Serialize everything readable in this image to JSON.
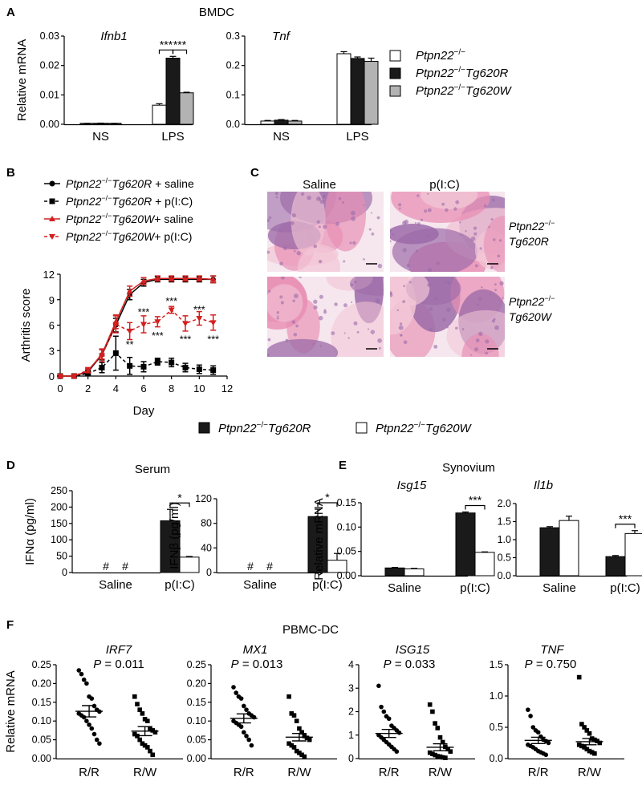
{
  "panel_A": {
    "letter": "A",
    "title": "BMDC",
    "ylabel": "Relative mRNA",
    "legend": [
      {
        "name": "Ptpn22",
        "sup": "−/−",
        "suffix": "",
        "color": "#ffffff"
      },
      {
        "name": "Ptpn22",
        "sup": "−/−",
        "suffix": "Tg620R",
        "color": "#1a1a1a"
      },
      {
        "name": "Ptpn22",
        "sup": "−/−",
        "suffix": "Tg620W",
        "color": "#b3b3b3"
      }
    ]
  },
  "panel_B": {
    "letter": "B",
    "legend": [
      {
        "prefix": "Ptpn22",
        "sup": "−/−",
        "gene": "Tg620R",
        "treat": " + saline"
      },
      {
        "prefix": "Ptpn22",
        "sup": "−/−",
        "gene": "Tg620R",
        "treat": " + p(I:C)"
      },
      {
        "prefix": "Ptpn22",
        "sup": "−/−",
        "gene": "Tg620W",
        "treat": "+ saline"
      },
      {
        "prefix": "Ptpn22",
        "sup": "−/−",
        "gene": "Tg620W",
        "treat": "+ p(I:C)"
      }
    ]
  },
  "panel_C": {
    "letter": "C",
    "col_labels": [
      "Saline",
      "p(I:C)"
    ],
    "row_labels": [
      {
        "line1": "Ptpn22",
        "sup": "−/−",
        "line2": "Tg620R"
      },
      {
        "line1": "Ptpn22",
        "sup": "−/−",
        "line2": "Tg620W"
      }
    ],
    "tissue_colors": {
      "pink": "#e890b4",
      "purple": "#9b6aa8",
      "light": "#f2c6d6",
      "bg": "#f6e6ee"
    }
  },
  "mid_legend": [
    {
      "name": "Ptpn22",
      "sup": "−/−",
      "suffix": "Tg620R",
      "color": "#1a1a1a"
    },
    {
      "name": "Ptpn22",
      "sup": "−/−",
      "suffix": "Tg620W",
      "color": "#ffffff"
    }
  ],
  "panel_D": {
    "letter": "D",
    "title": "Serum"
  },
  "panel_E": {
    "letter": "E",
    "title": "Synovium"
  },
  "panel_F": {
    "letter": "F",
    "title": "PBMC-DC"
  },
  "chart_data": [
    {
      "id": "A1",
      "type": "bar",
      "title": "Ifnb1",
      "ylabel": "Relative mRNA",
      "categories": [
        "NS",
        "LPS"
      ],
      "ylim": [
        0,
        0.03
      ],
      "yticks": [
        "0.00",
        "0.01",
        "0.02",
        "0.03"
      ],
      "series": [
        {
          "color": "#ffffff",
          "values": [
            0.0002,
            0.0065
          ],
          "errors": [
            0.0001,
            0.0005
          ]
        },
        {
          "color": "#1a1a1a",
          "values": [
            0.0003,
            0.0225
          ],
          "errors": [
            0.0001,
            0.0006
          ]
        },
        {
          "color": "#b3b3b3",
          "values": [
            0.0002,
            0.0107
          ],
          "errors": [
            0.0001,
            0.0002
          ]
        }
      ],
      "annotations": [
        {
          "label": "***",
          "from": [
            1,
            0
          ],
          "to": [
            1,
            1
          ]
        },
        {
          "label": "***",
          "from": [
            1,
            1
          ],
          "to": [
            1,
            2
          ]
        }
      ]
    },
    {
      "id": "A2",
      "type": "bar",
      "title": "Tnf",
      "ylabel": "",
      "categories": [
        "NS",
        "LPS"
      ],
      "ylim": [
        0,
        0.3
      ],
      "yticks": [
        "0.0",
        "0.1",
        "0.2",
        "0.3"
      ],
      "series": [
        {
          "color": "#ffffff",
          "values": [
            0.011,
            0.24
          ],
          "errors": [
            0.002,
            0.007
          ]
        },
        {
          "color": "#1a1a1a",
          "values": [
            0.014,
            0.224
          ],
          "errors": [
            0.002,
            0.005
          ]
        },
        {
          "color": "#b3b3b3",
          "values": [
            0.011,
            0.214
          ],
          "errors": [
            0.002,
            0.011
          ]
        }
      ],
      "annotations": []
    },
    {
      "id": "B",
      "type": "line",
      "xlabel": "Day",
      "ylabel": "Arthritis score",
      "xlim": [
        0,
        12
      ],
      "xticks": [
        "0",
        "2",
        "4",
        "6",
        "8",
        "10",
        "12"
      ],
      "ylim": [
        0,
        12
      ],
      "yticks": [
        "0",
        "3",
        "6",
        "9",
        "12"
      ],
      "series": [
        {
          "color": "#000000",
          "dash": "",
          "marker": "circle",
          "x": [
            0,
            1,
            2,
            3,
            4,
            5,
            6,
            7,
            8,
            9,
            10,
            11
          ],
          "y": [
            0,
            0,
            0.5,
            2.5,
            6.0,
            9.6,
            11.0,
            11.4,
            11.4,
            11.4,
            11.4,
            11.4
          ],
          "err": [
            0,
            0,
            0.2,
            0.6,
            0.8,
            0.6,
            0.4,
            0.3,
            0.3,
            0.3,
            0.3,
            0.4
          ]
        },
        {
          "color": "#000000",
          "dash": "4,3",
          "marker": "square",
          "x": [
            0,
            1,
            2,
            3,
            4,
            5,
            6,
            7,
            8,
            9,
            10,
            11
          ],
          "y": [
            0,
            0,
            0.3,
            1.0,
            2.7,
            1.2,
            1.1,
            1.7,
            1.6,
            1.0,
            0.8,
            0.7
          ],
          "err": [
            0,
            0,
            0.2,
            0.6,
            2.0,
            1.0,
            0.6,
            0.4,
            0.5,
            0.5,
            0.5,
            0.5
          ]
        },
        {
          "color": "#d42020",
          "dash": "",
          "marker": "triangle",
          "x": [
            0,
            1,
            2,
            3,
            4,
            5,
            6,
            7,
            8,
            9,
            10,
            11
          ],
          "y": [
            0,
            0,
            0.6,
            2.6,
            6.4,
            10.0,
            11.2,
            11.5,
            11.5,
            11.5,
            11.5,
            11.4
          ],
          "err": [
            0,
            0,
            0.2,
            0.6,
            0.8,
            0.6,
            0.4,
            0.3,
            0.3,
            0.3,
            0.3,
            0.4
          ]
        },
        {
          "color": "#d42020",
          "dash": "4,3",
          "marker": "triangle-down",
          "x": [
            0,
            1,
            2,
            3,
            4,
            5,
            6,
            7,
            8,
            9,
            10,
            11
          ],
          "y": [
            0,
            0,
            0.7,
            2.4,
            6.1,
            5.3,
            6.1,
            6.4,
            7.8,
            6.2,
            6.8,
            6.3
          ],
          "err": [
            0,
            0,
            0.3,
            0.7,
            1.0,
            1.0,
            1.0,
            0.6,
            0.4,
            0.9,
            0.8,
            0.9
          ]
        }
      ],
      "annotations": [
        {
          "label": "**",
          "x": 5,
          "y": 3.8
        },
        {
          "label": "***",
          "x": 6,
          "y": 7.6
        },
        {
          "label": "***",
          "x": 7,
          "y": 4.8
        },
        {
          "label": "***",
          "x": 8,
          "y": 8.9
        },
        {
          "label": "***",
          "x": 9,
          "y": 4.4
        },
        {
          "label": "***",
          "x": 10,
          "y": 7.9
        },
        {
          "label": "***",
          "x": 11,
          "y": 4.4
        }
      ]
    },
    {
      "id": "D1",
      "type": "bar",
      "ylabel": "IFNα (pg/ml)",
      "categories": [
        "Saline",
        "p(I:C)"
      ],
      "ylim": [
        0,
        250
      ],
      "yticks": [
        "0",
        "50",
        "100",
        "150",
        "200",
        "250"
      ],
      "series": [
        {
          "color": "#1a1a1a",
          "values": [
            0,
            158
          ],
          "errors": [
            0,
            35
          ],
          "missing": [
            "#",
            null
          ]
        },
        {
          "color": "#ffffff",
          "values": [
            0,
            47
          ],
          "errors": [
            0,
            2
          ],
          "missing": [
            "#",
            null
          ]
        }
      ],
      "annotations": [
        {
          "label": "*",
          "from": [
            1,
            0
          ],
          "to": [
            1,
            1
          ]
        }
      ]
    },
    {
      "id": "D2",
      "type": "bar",
      "ylabel": "IFNβ (pg/ml)",
      "categories": [
        "Saline",
        "p(I:C)"
      ],
      "ylim": [
        0,
        120
      ],
      "yticks": [
        "0",
        "40",
        "80",
        "120"
      ],
      "series": [
        {
          "color": "#1a1a1a",
          "values": [
            0,
            91
          ],
          "errors": [
            0,
            12
          ],
          "missing": [
            "#",
            null
          ]
        },
        {
          "color": "#ffffff",
          "values": [
            0,
            20
          ],
          "errors": [
            0,
            11
          ],
          "missing": [
            "#",
            null
          ]
        }
      ],
      "annotations": [
        {
          "label": "*",
          "from": [
            1,
            0
          ],
          "to": [
            1,
            1
          ]
        }
      ]
    },
    {
      "id": "E1",
      "type": "bar",
      "title": "Isg15",
      "ylabel": "Relative mRNA",
      "categories": [
        "Saline",
        "p(I:C)"
      ],
      "ylim": [
        0,
        0.15
      ],
      "yticks": [
        "0.00",
        "0.05",
        "0.10",
        "0.15"
      ],
      "series": [
        {
          "color": "#1a1a1a",
          "values": [
            0.016,
            0.129
          ],
          "errors": [
            0.001,
            0.002
          ]
        },
        {
          "color": "#ffffff",
          "values": [
            0.014,
            0.048
          ],
          "errors": [
            0.001,
            0.001
          ]
        }
      ],
      "annotations": [
        {
          "label": "***",
          "from": [
            1,
            0
          ],
          "to": [
            1,
            1
          ]
        }
      ]
    },
    {
      "id": "E2",
      "type": "bar",
      "title": "Il1b",
      "ylabel": "",
      "categories": [
        "Saline",
        "p(I:C)"
      ],
      "ylim": [
        0,
        2.0
      ],
      "yticks": [
        "0.0",
        "0.5",
        "1.0",
        "1.5",
        "2.0"
      ],
      "series": [
        {
          "color": "#1a1a1a",
          "values": [
            1.33,
            0.53
          ],
          "errors": [
            0.03,
            0.03
          ]
        },
        {
          "color": "#ffffff",
          "values": [
            1.53,
            1.17
          ],
          "errors": [
            0.12,
            0.08
          ]
        }
      ],
      "annotations": [
        {
          "label": "***",
          "from": [
            1,
            0
          ],
          "to": [
            1,
            1
          ]
        }
      ]
    },
    {
      "id": "F1",
      "type": "scatter",
      "title": "IRF7",
      "pvalue": "0.011",
      "ylabel": "Relative mRNA",
      "categories": [
        "R/R",
        "R/W"
      ],
      "ylim": [
        0,
        0.25
      ],
      "yticks": [
        "0.00",
        "0.05",
        "0.10",
        "0.15",
        "0.20",
        "0.25"
      ],
      "groups": [
        {
          "marker": "circle",
          "mean": 0.126,
          "sem": 0.015,
          "values": [
            0.235,
            0.225,
            0.21,
            0.2,
            0.165,
            0.16,
            0.14,
            0.13,
            0.125,
            0.12,
            0.115,
            0.11,
            0.1,
            0.09,
            0.08,
            0.065,
            0.05,
            0.04
          ]
        },
        {
          "marker": "square",
          "mean": 0.073,
          "sem": 0.012,
          "values": [
            0.165,
            0.145,
            0.13,
            0.12,
            0.105,
            0.1,
            0.08,
            0.075,
            0.07,
            0.065,
            0.06,
            0.05,
            0.04,
            0.035,
            0.03,
            0.02,
            0.01
          ]
        }
      ]
    },
    {
      "id": "F2",
      "type": "scatter",
      "title": "MX1",
      "pvalue": "0.013",
      "ylabel": "",
      "categories": [
        "R/R",
        "R/W"
      ],
      "ylim": [
        0,
        0.25
      ],
      "yticks": [
        "0.00",
        "0.05",
        "0.10",
        "0.15",
        "0.20",
        "0.25"
      ],
      "groups": [
        {
          "marker": "circle",
          "mean": 0.107,
          "sem": 0.012,
          "values": [
            0.19,
            0.175,
            0.165,
            0.16,
            0.14,
            0.13,
            0.12,
            0.115,
            0.11,
            0.1,
            0.095,
            0.09,
            0.085,
            0.07,
            0.06,
            0.05,
            0.035
          ]
        },
        {
          "marker": "square",
          "mean": 0.057,
          "sem": 0.01,
          "values": [
            0.165,
            0.12,
            0.115,
            0.1,
            0.08,
            0.07,
            0.06,
            0.055,
            0.05,
            0.04,
            0.035,
            0.03,
            0.02,
            0.015,
            0.01,
            0.005
          ]
        }
      ]
    },
    {
      "id": "F3",
      "type": "scatter",
      "title": "ISG15",
      "pvalue": "0.033",
      "ylabel": "",
      "categories": [
        "R/R",
        "R/W"
      ],
      "ylim": [
        0,
        4
      ],
      "yticks": [
        "0",
        "1",
        "2",
        "3",
        "4"
      ],
      "groups": [
        {
          "marker": "circle",
          "mean": 1.07,
          "sem": 0.17,
          "values": [
            3.1,
            2.2,
            2.0,
            1.8,
            1.7,
            1.4,
            1.3,
            1.2,
            1.1,
            1.0,
            0.9,
            0.8,
            0.7,
            0.6,
            0.5,
            0.4,
            0.3
          ]
        },
        {
          "marker": "square",
          "mean": 0.48,
          "sem": 0.15,
          "values": [
            2.3,
            2.0,
            1.5,
            1.3,
            0.9,
            0.7,
            0.5,
            0.4,
            0.3,
            0.25,
            0.2,
            0.15,
            0.1,
            0.08,
            0.05,
            0.03
          ]
        }
      ]
    },
    {
      "id": "F4",
      "type": "scatter",
      "title": "TNF",
      "pvalue": "0.750",
      "ylabel": "",
      "categories": [
        "R/R",
        "R/W"
      ],
      "ylim": [
        0,
        1.5
      ],
      "yticks": [
        "0.0",
        "0.5",
        "1.0",
        "1.5"
      ],
      "groups": [
        {
          "marker": "circle",
          "mean": 0.29,
          "sem": 0.05,
          "values": [
            0.78,
            0.68,
            0.5,
            0.45,
            0.42,
            0.35,
            0.3,
            0.28,
            0.25,
            0.22,
            0.2,
            0.18,
            0.15,
            0.12,
            0.1,
            0.08,
            0.06
          ]
        },
        {
          "marker": "square",
          "mean": 0.27,
          "sem": 0.05,
          "values": [
            1.3,
            0.55,
            0.5,
            0.45,
            0.4,
            0.32,
            0.3,
            0.28,
            0.25,
            0.22,
            0.2,
            0.18,
            0.15,
            0.12,
            0.1,
            0.08
          ]
        }
      ]
    }
  ]
}
